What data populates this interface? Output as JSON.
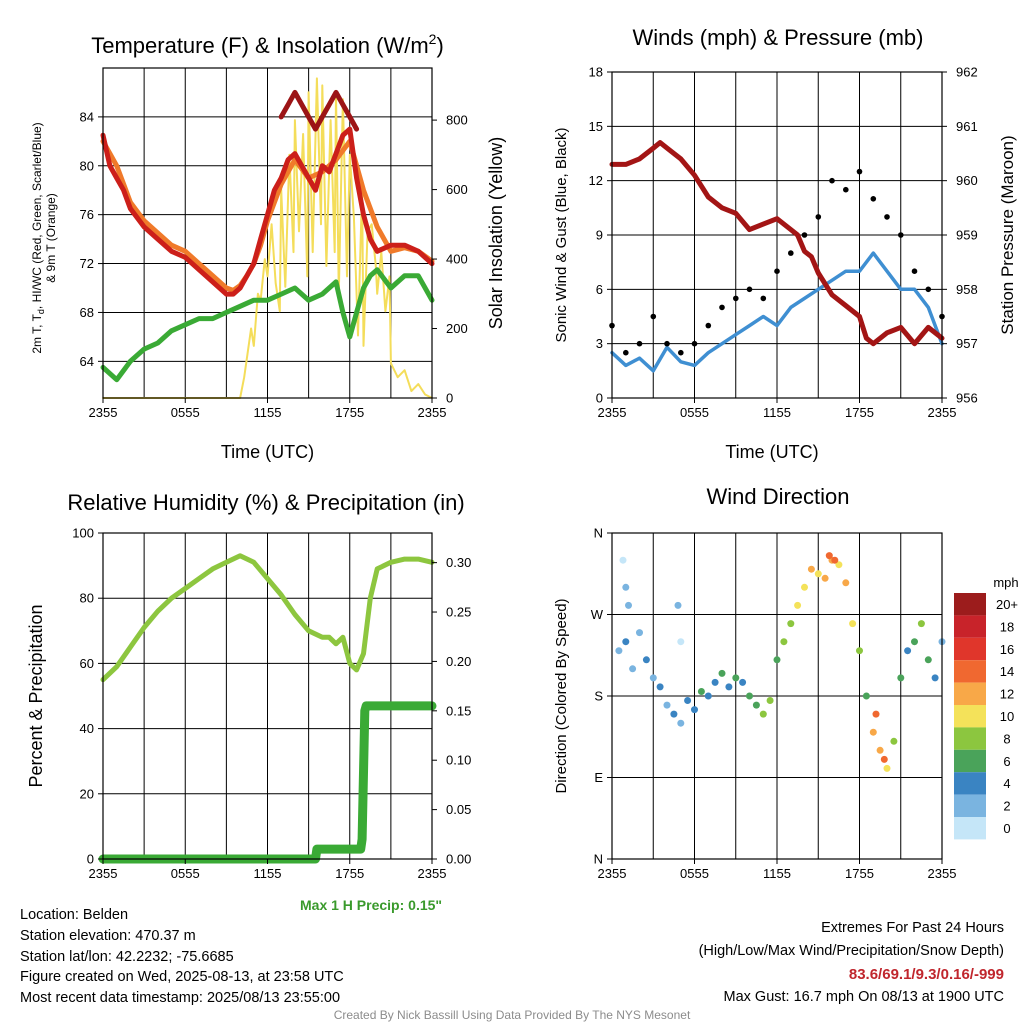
{
  "chart_data": [
    {
      "id": "temp",
      "type": "line",
      "title": "Temperature (F) & Insolation (W/m²)",
      "title_main": "Temperature (F) & Insolation (W/m",
      "title_sup": "2",
      "title_end": ")",
      "xlabel": "Time (UTC)",
      "ylabel_line1": "2m T, T",
      "ylabel_sub": "d",
      "ylabel_line1_rest": ", HI/WC (Red, Green, Scarlet/Blue)",
      "ylabel_line2": "& 9m T (Orange)",
      "y2label": "Solar Insolation (Yellow)",
      "x_ticks": [
        "2355",
        "0555",
        "1155",
        "1755",
        "2355"
      ],
      "y_ticks": [
        "64",
        "68",
        "72",
        "76",
        "80",
        "84"
      ],
      "y2_ticks": [
        "0",
        "200",
        "400",
        "600",
        "800"
      ],
      "ylim": [
        61,
        88
      ],
      "y2lim": [
        0,
        950
      ],
      "grid": true,
      "colors": {
        "temp": "#cc1f1a",
        "nine_m": "#f07a2a",
        "heat_index": "#9c1416",
        "dewpoint": "#3aaa35",
        "solar": "#f4dd5a"
      },
      "series": [
        {
          "key": "temp",
          "x": [
            0,
            0.5,
            1,
            1.5,
            2,
            3,
            4,
            5,
            6,
            7,
            8,
            9,
            9.5,
            10,
            10.5,
            11,
            11.5,
            12,
            12.5,
            13,
            13.5,
            14,
            14.5,
            15,
            15.5,
            16,
            16.5,
            17,
            17.5,
            18,
            18.5,
            19,
            19.5,
            20,
            21,
            22,
            23,
            24
          ],
          "values": [
            82.5,
            80,
            79,
            78,
            76.5,
            75,
            74,
            73,
            72.5,
            71.5,
            70.5,
            69.5,
            69.5,
            70,
            71,
            72,
            74,
            76,
            78,
            79,
            80.5,
            81,
            80,
            79,
            78,
            80,
            79.5,
            81,
            82.5,
            83,
            79,
            76,
            74,
            73,
            73.5,
            73.5,
            73,
            72
          ]
        },
        {
          "key": "nine_m",
          "x": [
            0,
            0.5,
            1,
            1.5,
            2,
            3,
            4,
            5,
            6,
            7,
            8,
            9,
            9.5,
            10,
            10.5,
            11,
            11.5,
            12,
            13,
            14,
            15,
            16,
            17,
            18,
            19,
            20,
            21,
            22,
            23,
            24
          ],
          "values": [
            82,
            81,
            80,
            78.5,
            77,
            75.5,
            74.5,
            73.5,
            73,
            72,
            71,
            70,
            69.8,
            70.2,
            71,
            72,
            73.5,
            75.5,
            78.5,
            80.5,
            79,
            79.5,
            80.5,
            82,
            78,
            75,
            73,
            73.3,
            73,
            72.2
          ]
        },
        {
          "key": "heat_index",
          "x": [
            13,
            13.5,
            14,
            14.5,
            15,
            15.5,
            16,
            16.5,
            17,
            17.5,
            18,
            18.5
          ],
          "values": [
            84,
            85,
            86,
            85,
            84,
            83,
            84,
            85,
            86,
            85,
            84,
            83
          ]
        },
        {
          "key": "dewpoint",
          "x": [
            0,
            1,
            2,
            3,
            4,
            5,
            6,
            7,
            8,
            9,
            10,
            11,
            12,
            13,
            14,
            15,
            16,
            17,
            17.5,
            18,
            18.5,
            19,
            19.5,
            20,
            21,
            22,
            23,
            24
          ],
          "values": [
            63.5,
            62.5,
            64,
            65,
            65.5,
            66.5,
            67,
            67.5,
            67.5,
            68,
            68.5,
            69,
            69,
            69.5,
            70,
            69,
            69.5,
            70.5,
            68,
            66,
            68,
            70,
            71,
            71.5,
            70,
            71,
            71,
            69
          ]
        },
        {
          "key": "solar",
          "x": [
            0,
            6,
            9,
            10,
            10.3,
            10.8,
            11,
            11.3,
            11.5,
            11.8,
            12,
            12.3,
            12.6,
            12.9,
            13,
            13.3,
            13.6,
            13.9,
            14,
            14.3,
            14.6,
            14.9,
            15,
            15.3,
            15.6,
            15.9,
            16,
            16.3,
            16.6,
            16.9,
            17,
            17.2,
            17.5,
            17.8,
            18,
            18.3,
            18.6,
            18.9,
            19,
            19.3,
            19.6,
            19.9,
            20,
            20.3,
            20.6,
            20.9,
            21,
            21.5,
            22,
            22.5,
            23,
            23.5,
            24
          ],
          "values": [
            0,
            0,
            0,
            0,
            60,
            200,
            150,
            300,
            280,
            400,
            350,
            500,
            330,
            250,
            600,
            320,
            700,
            420,
            800,
            480,
            760,
            350,
            880,
            420,
            920,
            500,
            900,
            380,
            800,
            420,
            880,
            300,
            860,
            350,
            700,
            520,
            180,
            600,
            150,
            480,
            500,
            380,
            300,
            420,
            250,
            350,
            100,
            60,
            80,
            20,
            40,
            10,
            0
          ]
        }
      ]
    },
    {
      "id": "winds",
      "type": "line",
      "title": "Winds (mph) & Pressure (mb)",
      "xlabel": "Time (UTC)",
      "ylabel": "Sonic Wind & Gust (Blue, Black)",
      "y2label": "Station Pressure (Maroon)",
      "x_ticks": [
        "2355",
        "0555",
        "1155",
        "1755",
        "2355"
      ],
      "y_ticks": [
        "0",
        "3",
        "6",
        "9",
        "12",
        "15",
        "18"
      ],
      "y2_ticks": [
        "956",
        "957",
        "958",
        "959",
        "960",
        "961",
        "962"
      ],
      "ylim": [
        0,
        18
      ],
      "y2lim": [
        956,
        962
      ],
      "grid": true,
      "colors": {
        "wind": "#3f8fd2",
        "gust": "#000000",
        "pressure": "#a31515"
      },
      "series": [
        {
          "key": "wind",
          "x": [
            0,
            1,
            2,
            3,
            4,
            5,
            6,
            7,
            8,
            9,
            10,
            11,
            12,
            13,
            14,
            15,
            16,
            17,
            18,
            19,
            20,
            21,
            22,
            23,
            24
          ],
          "values": [
            2.5,
            1.8,
            2.2,
            1.5,
            2.8,
            2,
            1.8,
            2.5,
            3,
            3.5,
            4,
            4.5,
            4,
            5,
            5.5,
            6,
            6.5,
            7,
            7,
            8,
            7,
            6,
            6,
            5,
            3
          ]
        },
        {
          "key": "gust",
          "x": [
            0,
            1,
            2,
            3,
            4,
            5,
            6,
            7,
            8,
            9,
            10,
            11,
            12,
            13,
            14,
            15,
            16,
            17,
            18,
            19,
            20,
            21,
            22,
            23,
            24
          ],
          "values": [
            4,
            2.5,
            3,
            4.5,
            3,
            2.5,
            3,
            4,
            5,
            5.5,
            6,
            5.5,
            7,
            8,
            9,
            10,
            12,
            11.5,
            12.5,
            11,
            10,
            9,
            7,
            6,
            4.5
          ]
        },
        {
          "key": "pressure",
          "x": [
            0,
            1,
            2,
            3,
            3.5,
            4,
            5,
            6,
            7,
            8,
            9,
            10,
            11,
            12,
            13,
            13.5,
            14,
            14.5,
            15,
            16,
            17,
            18,
            18.5,
            19,
            20,
            21,
            22,
            23,
            24
          ],
          "values": [
            960.3,
            960.3,
            960.4,
            960.6,
            960.7,
            960.6,
            960.4,
            960.1,
            959.7,
            959.5,
            959.4,
            959.1,
            959.2,
            959.3,
            959.1,
            959.0,
            958.7,
            958.6,
            958.3,
            957.9,
            957.7,
            957.5,
            957.1,
            957.0,
            957.2,
            957.3,
            957.0,
            957.3,
            957.1
          ]
        }
      ]
    },
    {
      "id": "rh",
      "type": "line",
      "title": "Relative Humidity (%) & Precipitation (in)",
      "xlabel": "",
      "ylabel": "Percent & Precipitation",
      "x_ticks": [
        "2355",
        "0555",
        "1155",
        "1755",
        "2355"
      ],
      "y_ticks": [
        "0",
        "20",
        "40",
        "60",
        "80",
        "100"
      ],
      "y2_ticks": [
        "0.00",
        "0.05",
        "0.10",
        "0.15",
        "0.20",
        "0.25",
        "0.30"
      ],
      "ylim": [
        0,
        100
      ],
      "y2lim": [
        0,
        0.33
      ],
      "grid": true,
      "colors": {
        "rh": "#8dc63f",
        "precip": "#3aaa35"
      },
      "annotation": "Max 1 H Precip: 0.15\"",
      "series": [
        {
          "key": "rh",
          "x": [
            0,
            1,
            2,
            3,
            4,
            5,
            6,
            7,
            8,
            9,
            10,
            11,
            12,
            13,
            14,
            15,
            16,
            16.5,
            17,
            17.5,
            18,
            18.5,
            19,
            19.5,
            20,
            21,
            22,
            23,
            24
          ],
          "values": [
            55,
            59,
            65,
            71,
            76,
            80,
            83,
            86,
            89,
            91,
            93,
            91,
            86,
            81,
            75,
            70,
            68,
            68,
            66,
            68,
            60,
            58,
            63,
            80,
            89,
            91,
            92,
            92,
            91
          ]
        },
        {
          "key": "precip",
          "x": [
            0,
            15.5,
            15.6,
            18.8,
            18.9,
            19.1,
            19.2,
            24
          ],
          "values": [
            0,
            0,
            0.01,
            0.01,
            0.02,
            0.15,
            0.155,
            0.155
          ]
        }
      ]
    },
    {
      "id": "wind_dir",
      "type": "scatter",
      "title": "Wind Direction",
      "xlabel": "",
      "ylabel": "Direction (Colored By Speed)",
      "x_ticks": [
        "2355",
        "0555",
        "1155",
        "1755",
        "2355"
      ],
      "y_ticks": [
        "N",
        "E",
        "S",
        "W",
        "N"
      ],
      "ylim": [
        0,
        360
      ],
      "grid": true,
      "legend_title": "mph",
      "legend_labels": [
        "20+",
        "18",
        "16",
        "14",
        "12",
        "10",
        "8",
        "6",
        "4",
        "2",
        "0"
      ],
      "legend_colors": [
        "#9c1c1c",
        "#c8232a",
        "#e0362b",
        "#f06830",
        "#f8a848",
        "#f4e25a",
        "#8cc63f",
        "#4aa35a",
        "#3a84c2",
        "#7ab4e0",
        "#c5e6f8"
      ],
      "points": [
        [
          0.5,
          230,
          1
        ],
        [
          1,
          240,
          2
        ],
        [
          1.5,
          210,
          1
        ],
        [
          2,
          250,
          1
        ],
        [
          2.5,
          220,
          2
        ],
        [
          3,
          200,
          1
        ],
        [
          1,
          300,
          1
        ],
        [
          0.8,
          330,
          0
        ],
        [
          1.2,
          280,
          1
        ],
        [
          3.5,
          190,
          2
        ],
        [
          4,
          170,
          1
        ],
        [
          4.5,
          160,
          2
        ],
        [
          5,
          150,
          1
        ],
        [
          5.5,
          175,
          2
        ],
        [
          6,
          165,
          2
        ],
        [
          6.5,
          185,
          3
        ],
        [
          5,
          240,
          0
        ],
        [
          4.8,
          280,
          1
        ],
        [
          7,
          180,
          2
        ],
        [
          7.5,
          195,
          2
        ],
        [
          8,
          205,
          3
        ],
        [
          8.5,
          190,
          2
        ],
        [
          9,
          200,
          3
        ],
        [
          9.5,
          195,
          2
        ],
        [
          10,
          180,
          3
        ],
        [
          10.5,
          170,
          3
        ],
        [
          11,
          160,
          4
        ],
        [
          11.5,
          175,
          4
        ],
        [
          12,
          220,
          3
        ],
        [
          12.5,
          240,
          4
        ],
        [
          13,
          260,
          4
        ],
        [
          13.5,
          280,
          5
        ],
        [
          14,
          300,
          5
        ],
        [
          14.5,
          320,
          6
        ],
        [
          15,
          315,
          5
        ],
        [
          15.5,
          310,
          6
        ],
        [
          16,
          330,
          6
        ],
        [
          16.5,
          325,
          5
        ],
        [
          17,
          305,
          6
        ],
        [
          17.5,
          260,
          5
        ],
        [
          18,
          230,
          4
        ],
        [
          18.5,
          180,
          3
        ],
        [
          19,
          140,
          6
        ],
        [
          19.5,
          120,
          6
        ],
        [
          20,
          100,
          5
        ],
        [
          20.5,
          130,
          4
        ],
        [
          21,
          200,
          3
        ],
        [
          21.5,
          230,
          2
        ],
        [
          22,
          240,
          3
        ],
        [
          22.5,
          260,
          4
        ],
        [
          23,
          220,
          3
        ],
        [
          23.5,
          200,
          2
        ],
        [
          24,
          240,
          1
        ],
        [
          19.2,
          160,
          7
        ],
        [
          19.8,
          110,
          7
        ],
        [
          16.2,
          330,
          7
        ],
        [
          15.8,
          335,
          7
        ]
      ]
    }
  ],
  "footer": {
    "location": "Location: Belden",
    "elevation": "Station elevation: 470.37 m",
    "latlon": "Station lat/lon: 42.2232; -75.6685",
    "created": "Figure created on Wed, 2025-08-13, at 23:58 UTC",
    "recent": "Most recent data timestamp: 2025/08/13 23:55:00",
    "extremes_title": "Extremes For Past 24 Hours",
    "extremes_desc": "(High/Low/Max Wind/Precipitation/Snow Depth)",
    "extremes_values": "83.6/69.1/9.3/0.16/-999",
    "max_gust": "Max Gust: 16.7 mph On 08/13 at 1900 UTC",
    "credit": "Created By Nick Bassill Using Data Provided By The NYS Mesonet"
  }
}
